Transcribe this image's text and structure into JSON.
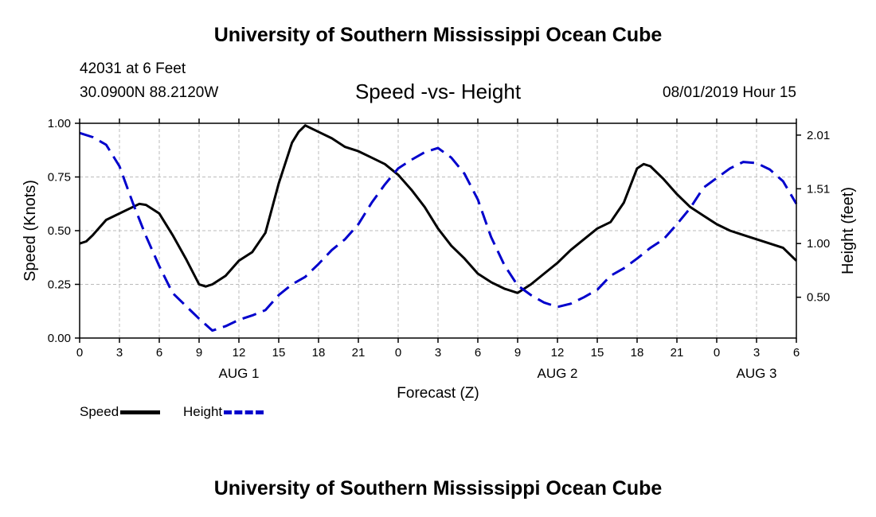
{
  "header": {
    "title": "University of Southern Mississippi Ocean Cube",
    "station": "42031 at 6 Feet",
    "coords": "30.0900N 88.2120W",
    "chart_title": "Speed -vs- Height",
    "datetime": "08/01/2019 Hour 15"
  },
  "footer": {
    "title": "University of Southern Mississippi Ocean Cube"
  },
  "legend": {
    "speed_label": "Speed",
    "height_label": "Height"
  },
  "colors": {
    "speed": "#000000",
    "height": "#0000cc",
    "grid": "#bbbbbb"
  },
  "chart_data": {
    "type": "line",
    "title": "Speed -vs- Height",
    "xlabel": "Forecast (Z)",
    "ylabel": "Speed (Knots)",
    "y2label": "Height (feet)",
    "xlim": [
      0,
      54
    ],
    "ylim": [
      0,
      1
    ],
    "y2lim": [
      0.12,
      2.12
    ],
    "x_ticks": [
      {
        "x": 0,
        "label": "0"
      },
      {
        "x": 3,
        "label": "3"
      },
      {
        "x": 6,
        "label": "6"
      },
      {
        "x": 9,
        "label": "9"
      },
      {
        "x": 12,
        "label": "12"
      },
      {
        "x": 15,
        "label": "15"
      },
      {
        "x": 18,
        "label": "18"
      },
      {
        "x": 21,
        "label": "21"
      },
      {
        "x": 24,
        "label": "0"
      },
      {
        "x": 27,
        "label": "3"
      },
      {
        "x": 30,
        "label": "6"
      },
      {
        "x": 33,
        "label": "9"
      },
      {
        "x": 36,
        "label": "12"
      },
      {
        "x": 39,
        "label": "15"
      },
      {
        "x": 42,
        "label": "18"
      },
      {
        "x": 45,
        "label": "21"
      },
      {
        "x": 48,
        "label": "0"
      },
      {
        "x": 51,
        "label": "3"
      },
      {
        "x": 54,
        "label": "6"
      }
    ],
    "day_labels": [
      {
        "x": 12,
        "label": "AUG 1"
      },
      {
        "x": 36,
        "label": "AUG 2"
      },
      {
        "x": 51,
        "label": "AUG 3"
      }
    ],
    "y_ticks": [
      {
        "value": 0,
        "label": "0.00"
      },
      {
        "value": 0.25,
        "label": "0.25"
      },
      {
        "value": 0.5,
        "label": "0.50"
      },
      {
        "value": 0.75,
        "label": "0.75"
      },
      {
        "value": 1,
        "label": "1.00"
      }
    ],
    "y2_ticks": [
      {
        "value": 0.5,
        "label": "0.50"
      },
      {
        "value": 1.0,
        "label": "1.00"
      },
      {
        "value": 1.51,
        "label": "1.51"
      },
      {
        "value": 2.01,
        "label": "2.01"
      }
    ],
    "series": [
      {
        "name": "Speed",
        "axis": "left",
        "style": "solid",
        "x": [
          0,
          0.5,
          1,
          2,
          3,
          4,
          4.5,
          5,
          6,
          7,
          8,
          9,
          9.5,
          10,
          11,
          12,
          13,
          14,
          15,
          16,
          16.5,
          17,
          18,
          19,
          20,
          21,
          22,
          23,
          24,
          25,
          26,
          27,
          28,
          29,
          30,
          31,
          32,
          33,
          34,
          35,
          36,
          37,
          38,
          39,
          40,
          41,
          42,
          42.5,
          43,
          44,
          45,
          46,
          47,
          48,
          49,
          50,
          51,
          52,
          53,
          54
        ],
        "y": [
          0.44,
          0.45,
          0.48,
          0.55,
          0.58,
          0.61,
          0.625,
          0.62,
          0.58,
          0.48,
          0.37,
          0.25,
          0.24,
          0.25,
          0.29,
          0.36,
          0.4,
          0.49,
          0.72,
          0.91,
          0.96,
          0.99,
          0.96,
          0.93,
          0.89,
          0.87,
          0.84,
          0.81,
          0.76,
          0.69,
          0.61,
          0.51,
          0.43,
          0.37,
          0.3,
          0.26,
          0.23,
          0.21,
          0.25,
          0.3,
          0.35,
          0.41,
          0.46,
          0.51,
          0.54,
          0.63,
          0.79,
          0.81,
          0.8,
          0.74,
          0.67,
          0.61,
          0.57,
          0.53,
          0.5,
          0.48,
          0.46,
          0.44,
          0.42,
          0.36
        ]
      },
      {
        "name": "Height",
        "axis": "right",
        "style": "dashed",
        "x": [
          0,
          1,
          2,
          3,
          4,
          5,
          6,
          7,
          8,
          9,
          10,
          11,
          12,
          13,
          14,
          15,
          16,
          17,
          18,
          19,
          20,
          21,
          22,
          23,
          24,
          25,
          26,
          27,
          28,
          29,
          30,
          31,
          32,
          33,
          34,
          35,
          36,
          37,
          38,
          39,
          40,
          41,
          42,
          43,
          44,
          45,
          46,
          47,
          48,
          49,
          50,
          51,
          52,
          53,
          54
        ],
        "y": [
          2.03,
          1.99,
          1.92,
          1.72,
          1.38,
          1.07,
          0.79,
          0.54,
          0.42,
          0.3,
          0.19,
          0.23,
          0.29,
          0.33,
          0.38,
          0.52,
          0.62,
          0.69,
          0.81,
          0.94,
          1.04,
          1.18,
          1.38,
          1.55,
          1.7,
          1.78,
          1.85,
          1.89,
          1.8,
          1.65,
          1.41,
          1.06,
          0.8,
          0.61,
          0.52,
          0.45,
          0.41,
          0.44,
          0.5,
          0.57,
          0.7,
          0.77,
          0.86,
          0.96,
          1.04,
          1.18,
          1.33,
          1.52,
          1.61,
          1.7,
          1.76,
          1.75,
          1.69,
          1.58,
          1.37
        ]
      }
    ]
  }
}
